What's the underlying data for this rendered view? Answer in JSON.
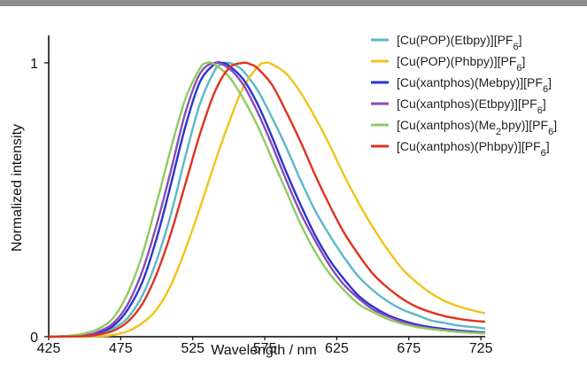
{
  "chart_data": {
    "type": "line",
    "title": "",
    "xlabel": "Wavelength / nm",
    "ylabel": "Normalized intensity",
    "xlim": [
      425,
      728
    ],
    "ylim": [
      0,
      1.1
    ],
    "x_ticks": [
      "425",
      "475",
      "525",
      "575",
      "625",
      "675",
      "725"
    ],
    "y_ticks": [
      "0",
      "1"
    ],
    "grid": false,
    "legend_position": "top-right",
    "series": [
      {
        "name": "[Cu(POP)(Etbpy)][PF6]",
        "label_parts": [
          {
            "t": "[Cu(POP)(Etbpy)][PF"
          },
          {
            "t": "6",
            "sub": true
          },
          {
            "t": "]"
          }
        ],
        "color": "#5bb8c8",
        "x": [
          425,
          450,
          460,
          470,
          480,
          490,
          500,
          510,
          520,
          530,
          540,
          545,
          550,
          555,
          560,
          570,
          580,
          590,
          600,
          610,
          620,
          630,
          640,
          650,
          660,
          670,
          680,
          690,
          700,
          710,
          720,
          728
        ],
        "y": [
          0,
          0.003,
          0.01,
          0.03,
          0.07,
          0.15,
          0.28,
          0.45,
          0.66,
          0.85,
          0.97,
          0.995,
          1.0,
          0.99,
          0.97,
          0.9,
          0.8,
          0.69,
          0.57,
          0.46,
          0.37,
          0.29,
          0.22,
          0.17,
          0.13,
          0.1,
          0.08,
          0.06,
          0.05,
          0.04,
          0.035,
          0.03
        ]
      },
      {
        "name": "[Cu(POP)(Phbpy)][PF6]",
        "label_parts": [
          {
            "t": "[Cu(POP)(Phbpy)][PF"
          },
          {
            "t": "6",
            "sub": true
          },
          {
            "t": "]"
          }
        ],
        "color": "#f2c318",
        "x": [
          425,
          460,
          470,
          480,
          490,
          500,
          510,
          520,
          530,
          540,
          550,
          560,
          570,
          575,
          580,
          590,
          600,
          610,
          620,
          630,
          640,
          650,
          660,
          670,
          680,
          690,
          700,
          710,
          720,
          728
        ],
        "y": [
          0,
          0.002,
          0.007,
          0.02,
          0.05,
          0.1,
          0.19,
          0.32,
          0.47,
          0.63,
          0.78,
          0.91,
          0.985,
          1.0,
          0.995,
          0.96,
          0.89,
          0.8,
          0.7,
          0.59,
          0.49,
          0.4,
          0.32,
          0.25,
          0.2,
          0.16,
          0.13,
          0.11,
          0.095,
          0.085
        ]
      },
      {
        "name": "[Cu(xantphos)(Mebpy)][PF6]",
        "label_parts": [
          {
            "t": "[Cu(xantphos)(Mebpy)][PF"
          },
          {
            "t": "6",
            "sub": true
          },
          {
            "t": "]"
          }
        ],
        "color": "#2a34cf",
        "x": [
          425,
          450,
          460,
          470,
          480,
          490,
          500,
          510,
          520,
          530,
          540,
          545,
          550,
          560,
          570,
          580,
          590,
          600,
          610,
          620,
          630,
          640,
          650,
          660,
          670,
          680,
          690,
          700,
          710,
          720,
          728
        ],
        "y": [
          0,
          0.005,
          0.015,
          0.04,
          0.1,
          0.2,
          0.36,
          0.56,
          0.77,
          0.93,
          0.995,
          1.0,
          0.99,
          0.94,
          0.85,
          0.73,
          0.6,
          0.48,
          0.37,
          0.28,
          0.21,
          0.15,
          0.11,
          0.08,
          0.06,
          0.045,
          0.035,
          0.028,
          0.022,
          0.018,
          0.015
        ]
      },
      {
        "name": "[Cu(xantphos)(Etbpy)][PF6]",
        "label_parts": [
          {
            "t": "[Cu(xantphos)(Etbpy)][PF"
          },
          {
            "t": "6",
            "sub": true
          },
          {
            "t": "]"
          }
        ],
        "color": "#8a4bb8",
        "x": [
          425,
          450,
          460,
          470,
          480,
          490,
          500,
          510,
          520,
          530,
          540,
          550,
          560,
          570,
          580,
          590,
          600,
          610,
          620,
          630,
          640,
          650,
          660,
          670,
          680,
          690,
          700,
          710,
          720,
          728
        ],
        "y": [
          0,
          0.006,
          0.02,
          0.05,
          0.12,
          0.24,
          0.41,
          0.61,
          0.82,
          0.96,
          1.0,
          0.98,
          0.92,
          0.82,
          0.7,
          0.57,
          0.45,
          0.35,
          0.26,
          0.19,
          0.14,
          0.1,
          0.075,
          0.055,
          0.04,
          0.03,
          0.024,
          0.019,
          0.015,
          0.012
        ]
      },
      {
        "name": "[Cu(xantphos)(Me2bpy)][PF6]",
        "label_parts": [
          {
            "t": "[Cu(xantphos)(Me"
          },
          {
            "t": "2",
            "sub": true
          },
          {
            "t": "bpy)][PF"
          },
          {
            "t": "6",
            "sub": true
          },
          {
            "t": "]"
          }
        ],
        "color": "#8fcb5f",
        "x": [
          425,
          440,
          450,
          460,
          470,
          480,
          490,
          500,
          510,
          520,
          530,
          535,
          540,
          550,
          560,
          570,
          580,
          590,
          600,
          610,
          620,
          630,
          640,
          650,
          660,
          670,
          680,
          690,
          700,
          710,
          720,
          728
        ],
        "y": [
          0,
          0.004,
          0.012,
          0.03,
          0.07,
          0.16,
          0.3,
          0.49,
          0.69,
          0.87,
          0.98,
          1.0,
          0.995,
          0.95,
          0.87,
          0.77,
          0.65,
          0.53,
          0.41,
          0.31,
          0.23,
          0.17,
          0.12,
          0.09,
          0.065,
          0.048,
          0.036,
          0.028,
          0.022,
          0.017,
          0.014,
          0.012
        ]
      },
      {
        "name": "[Cu(xantphos)(Phbpy)][PF6]",
        "label_parts": [
          {
            "t": "[Cu(xantphos)(Phbpy)][PF"
          },
          {
            "t": "6",
            "sub": true
          },
          {
            "t": "]"
          }
        ],
        "color": "#e0321e",
        "x": [
          425,
          450,
          460,
          470,
          480,
          490,
          500,
          510,
          520,
          530,
          540,
          550,
          560,
          565,
          570,
          580,
          590,
          600,
          610,
          620,
          630,
          640,
          650,
          660,
          670,
          680,
          690,
          700,
          710,
          720,
          728
        ],
        "y": [
          0,
          0.002,
          0.008,
          0.022,
          0.055,
          0.12,
          0.23,
          0.38,
          0.56,
          0.74,
          0.89,
          0.98,
          1.0,
          0.995,
          0.98,
          0.92,
          0.82,
          0.71,
          0.59,
          0.48,
          0.38,
          0.3,
          0.23,
          0.18,
          0.14,
          0.11,
          0.09,
          0.075,
          0.065,
          0.058,
          0.055
        ]
      }
    ]
  }
}
